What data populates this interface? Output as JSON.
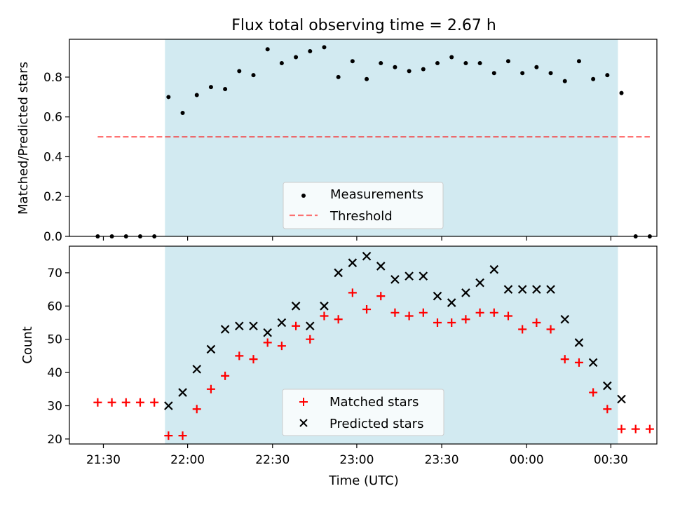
{
  "title": "Flux total observing time = 2.67 h",
  "colors": {
    "shade": "#add8e6",
    "measure": "#000000",
    "threshold": "#ff0000",
    "matched": "#ff0000",
    "predicted": "#000000"
  },
  "chart_data": [
    {
      "type": "scatter",
      "ylabel": "Matched/Predicted stars",
      "xlim": [
        -4,
        79
      ],
      "ylim": [
        0,
        0.99
      ],
      "yticks": [
        0.0,
        0.2,
        0.4,
        0.6,
        0.8
      ],
      "ytick_labels": [
        "0.0",
        "0.2",
        "0.4",
        "0.6",
        "0.8"
      ],
      "observing_window": [
        9.5,
        73.5
      ],
      "threshold": {
        "value": 0.5,
        "x_range": [
          0,
          78
        ]
      },
      "legend": {
        "location": "lower center",
        "entries": [
          "Measurements",
          "Threshold"
        ]
      },
      "series": [
        {
          "name": "Measurements",
          "marker": "dot",
          "x": [
            0,
            2,
            4,
            6,
            8,
            10,
            12,
            14,
            16,
            18,
            20,
            22,
            24,
            26,
            28,
            30,
            32,
            34,
            36,
            38,
            40,
            42,
            44,
            46,
            48,
            50,
            52,
            54,
            56,
            58,
            60,
            62,
            64,
            66,
            68,
            70,
            72,
            74,
            76,
            78
          ],
          "y": [
            0,
            0,
            0,
            0,
            0,
            0.7,
            0.62,
            0.71,
            0.75,
            0.74,
            0.83,
            0.81,
            0.94,
            0.87,
            0.9,
            0.93,
            0.95,
            0.8,
            0.88,
            0.79,
            0.87,
            0.85,
            0.83,
            0.84,
            0.87,
            0.9,
            0.87,
            0.87,
            0.82,
            0.88,
            0.82,
            0.85,
            0.82,
            0.78,
            0.88,
            0.79,
            0.81,
            0.72,
            0,
            0
          ]
        }
      ]
    },
    {
      "type": "scatter",
      "ylabel": "Count",
      "xlabel": "Time (UTC)",
      "xlim": [
        -4,
        79
      ],
      "ylim": [
        18.5,
        78
      ],
      "yticks": [
        20,
        30,
        40,
        50,
        60,
        70
      ],
      "ytick_labels": [
        "20",
        "30",
        "40",
        "50",
        "60",
        "70"
      ],
      "xticks": [
        0.8,
        12.7,
        24.7,
        36.6,
        48.6,
        60.6,
        72.5
      ],
      "xtick_labels": [
        "21:30",
        "22:00",
        "22:30",
        "23:00",
        "23:30",
        "00:00",
        "00:30"
      ],
      "observing_window": [
        9.5,
        73.5
      ],
      "legend": {
        "location": "lower center",
        "entries": [
          "Matched stars",
          "Predicted stars"
        ]
      },
      "series": [
        {
          "name": "Matched stars",
          "marker": "plus",
          "x": [
            0,
            2,
            4,
            6,
            8,
            10,
            12,
            14,
            16,
            18,
            20,
            22,
            24,
            26,
            28,
            30,
            32,
            34,
            36,
            38,
            40,
            42,
            44,
            46,
            48,
            50,
            52,
            54,
            56,
            58,
            60,
            62,
            64,
            66,
            68,
            70,
            72,
            74,
            76,
            78
          ],
          "y": [
            31,
            31,
            31,
            31,
            31,
            21,
            21,
            29,
            35,
            39,
            45,
            44,
            49,
            48,
            54,
            50,
            57,
            56,
            64,
            59,
            63,
            58,
            57,
            58,
            55,
            55,
            56,
            58,
            58,
            57,
            53,
            55,
            53,
            44,
            43,
            34,
            29,
            23,
            23,
            23
          ]
        },
        {
          "name": "Predicted stars",
          "marker": "x",
          "x": [
            10,
            12,
            14,
            16,
            18,
            20,
            22,
            24,
            26,
            28,
            30,
            32,
            34,
            36,
            38,
            40,
            42,
            44,
            46,
            48,
            50,
            52,
            54,
            56,
            58,
            60,
            62,
            64,
            66,
            68,
            70,
            72,
            74
          ],
          "y": [
            30,
            34,
            41,
            47,
            53,
            54,
            54,
            52,
            55,
            60,
            54,
            60,
            70,
            73,
            75,
            72,
            68,
            69,
            69,
            63,
            61,
            64,
            67,
            71,
            65,
            65,
            65,
            65,
            56,
            49,
            43,
            36,
            32
          ]
        }
      ]
    }
  ]
}
